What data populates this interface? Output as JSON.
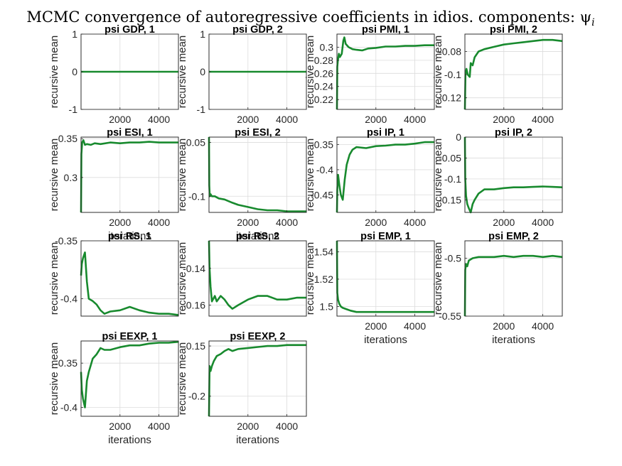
{
  "figure": {
    "title": "MCMC convergence of autoregressive coefficients in idios. components: ψ_i",
    "title_display": "MCMC convergence of autoregressive coefficients in idios. components: ψ",
    "title_subscript": "i"
  },
  "style": {
    "line_color": "#188a2e",
    "grid": true
  },
  "chart_data": [
    {
      "type": "line",
      "title": "psi GDP, 1",
      "xlabel": "",
      "ylabel": "recursive mean",
      "xlim": [
        1,
        5000
      ],
      "ylim": [
        -1,
        1
      ],
      "xticks": [
        2000,
        4000
      ],
      "yticks": [
        -1,
        0,
        1
      ],
      "ytick_labels": [
        "-1",
        "0",
        "1"
      ],
      "x": [
        1,
        5000
      ],
      "y": [
        0,
        0
      ]
    },
    {
      "type": "line",
      "title": "psi GDP, 2",
      "xlabel": "",
      "ylabel": "recursive mean",
      "xlim": [
        1,
        5000
      ],
      "ylim": [
        -1,
        1
      ],
      "xticks": [
        2000,
        4000
      ],
      "yticks": [
        -1,
        0,
        1
      ],
      "ytick_labels": [
        "-1",
        "0",
        "1"
      ],
      "x": [
        1,
        5000
      ],
      "y": [
        0,
        0
      ]
    },
    {
      "type": "line",
      "title": "psi PMI, 1",
      "xlabel": "",
      "ylabel": "recursive mean",
      "xlim": [
        1,
        5000
      ],
      "ylim": [
        0.205,
        0.32
      ],
      "xticks": [
        2000,
        4000
      ],
      "yticks": [
        0.22,
        0.24,
        0.26,
        0.28,
        0.3
      ],
      "ytick_labels": [
        "0.22",
        "0.24",
        "0.26",
        "0.28",
        "0.3"
      ],
      "x": [
        1,
        20,
        50,
        100,
        150,
        250,
        330,
        380,
        450,
        600,
        800,
        1000,
        1300,
        1600,
        2000,
        2500,
        3000,
        3500,
        4000,
        4500,
        5000
      ],
      "y": [
        0.205,
        0.27,
        0.28,
        0.29,
        0.285,
        0.29,
        0.31,
        0.315,
        0.305,
        0.3,
        0.297,
        0.296,
        0.295,
        0.298,
        0.299,
        0.301,
        0.301,
        0.302,
        0.302,
        0.303,
        0.303
      ]
    },
    {
      "type": "line",
      "title": "psi PMI, 2",
      "xlabel": "",
      "ylabel": "recursive mean",
      "xlim": [
        1,
        5000
      ],
      "ylim": [
        -0.13,
        -0.065
      ],
      "xticks": [
        2000,
        4000
      ],
      "yticks": [
        -0.12,
        -0.1,
        -0.08
      ],
      "ytick_labels": [
        "-0.12",
        "-0.1",
        "-0.08"
      ],
      "x": [
        1,
        30,
        80,
        150,
        250,
        300,
        400,
        500,
        700,
        1000,
        1500,
        2000,
        2500,
        3000,
        3500,
        4000,
        4500,
        5000
      ],
      "y": [
        -0.13,
        -0.1,
        -0.095,
        -0.1,
        -0.102,
        -0.09,
        -0.092,
        -0.085,
        -0.08,
        -0.078,
        -0.076,
        -0.074,
        -0.073,
        -0.072,
        -0.071,
        -0.07,
        -0.07,
        -0.071
      ]
    },
    {
      "type": "line",
      "title": "psi ESI, 1",
      "xlabel": "iterations",
      "ylabel": "recursive mean",
      "xlim": [
        1,
        5000
      ],
      "ylim": [
        0.255,
        0.352
      ],
      "xticks": [
        2000,
        4000
      ],
      "yticks": [
        0.3,
        0.35
      ],
      "ytick_labels": [
        "0.3",
        "0.35"
      ],
      "x": [
        1,
        20,
        60,
        120,
        200,
        300,
        500,
        700,
        1000,
        1500,
        2000,
        2500,
        3000,
        3500,
        4000,
        4500,
        5000
      ],
      "y": [
        0.255,
        0.33,
        0.345,
        0.348,
        0.342,
        0.343,
        0.342,
        0.344,
        0.343,
        0.345,
        0.344,
        0.345,
        0.345,
        0.346,
        0.345,
        0.345,
        0.345
      ]
    },
    {
      "type": "line",
      "title": "psi ESI, 2",
      "xlabel": "iterations",
      "ylabel": "recursive mean",
      "xlim": [
        1,
        5000
      ],
      "ylim": [
        -0.115,
        -0.045
      ],
      "xticks": [
        2000,
        4000
      ],
      "yticks": [
        -0.1,
        -0.05
      ],
      "ytick_labels": [
        "-0.1",
        "-0.05"
      ],
      "x": [
        1,
        15,
        40,
        80,
        150,
        300,
        500,
        800,
        1200,
        1500,
        2000,
        2500,
        3000,
        3500,
        4000,
        4500,
        5000
      ],
      "y": [
        -0.045,
        -0.09,
        -0.1,
        -0.098,
        -0.1,
        -0.1,
        -0.102,
        -0.103,
        -0.106,
        -0.108,
        -0.11,
        -0.112,
        -0.113,
        -0.113,
        -0.114,
        -0.114,
        -0.114
      ]
    },
    {
      "type": "line",
      "title": "psi IP, 1",
      "xlabel": "",
      "ylabel": "recursive mean",
      "xlim": [
        1,
        5000
      ],
      "ylim": [
        -0.485,
        -0.335
      ],
      "xticks": [
        2000,
        4000
      ],
      "yticks": [
        -0.45,
        -0.4,
        -0.35
      ],
      "ytick_labels": [
        "-0.45",
        "-0.4",
        "-0.35"
      ],
      "x": [
        1,
        20,
        60,
        120,
        200,
        300,
        400,
        500,
        650,
        800,
        1000,
        1500,
        2000,
        2500,
        3000,
        3500,
        4000,
        4500,
        5000
      ],
      "y": [
        -0.485,
        -0.44,
        -0.41,
        -0.43,
        -0.45,
        -0.46,
        -0.42,
        -0.39,
        -0.37,
        -0.36,
        -0.355,
        -0.357,
        -0.353,
        -0.352,
        -0.35,
        -0.35,
        -0.348,
        -0.345,
        -0.345
      ]
    },
    {
      "type": "line",
      "title": "psi IP, 2",
      "xlabel": "",
      "ylabel": "recursive mean",
      "xlim": [
        1,
        5000
      ],
      "ylim": [
        -0.18,
        0
      ],
      "xticks": [
        2000,
        4000
      ],
      "yticks": [
        -0.15,
        -0.1,
        -0.05,
        0
      ],
      "ytick_labels": [
        "-0.15",
        "-0.1",
        "-0.05",
        "0"
      ],
      "x": [
        1,
        20,
        60,
        120,
        200,
        300,
        400,
        500,
        700,
        1000,
        1500,
        2000,
        2500,
        3000,
        3500,
        4000,
        4500,
        5000
      ],
      "y": [
        0,
        -0.1,
        -0.14,
        -0.16,
        -0.17,
        -0.18,
        -0.16,
        -0.15,
        -0.135,
        -0.125,
        -0.125,
        -0.122,
        -0.12,
        -0.12,
        -0.119,
        -0.118,
        -0.119,
        -0.12
      ]
    },
    {
      "type": "line",
      "title": "psi RS, 1",
      "xlabel": "",
      "ylabel": "recursive mean",
      "xlim": [
        1,
        5000
      ],
      "ylim": [
        -0.415,
        -0.35
      ],
      "xticks": [],
      "yticks": [
        -0.4,
        -0.35
      ],
      "ytick_labels": [
        "-0.4",
        "-0.35"
      ],
      "x": [
        1,
        40,
        100,
        200,
        300,
        400,
        600,
        800,
        1000,
        1200,
        1500,
        2000,
        2500,
        3000,
        3500,
        4000,
        4500,
        5000
      ],
      "y": [
        -0.38,
        -0.37,
        -0.365,
        -0.36,
        -0.385,
        -0.4,
        -0.402,
        -0.405,
        -0.41,
        -0.413,
        -0.411,
        -0.41,
        -0.407,
        -0.41,
        -0.412,
        -0.413,
        -0.413,
        -0.414
      ]
    },
    {
      "type": "line",
      "title": "psi RS, 2",
      "xlabel": "",
      "ylabel": "recursive mean",
      "xlim": [
        1,
        5000
      ],
      "ylim": [
        -0.166,
        -0.125
      ],
      "xticks": [],
      "yticks": [
        -0.16,
        -0.14
      ],
      "ytick_labels": [
        "-0.16",
        "-0.14"
      ],
      "x": [
        1,
        30,
        80,
        150,
        300,
        400,
        600,
        800,
        1000,
        1200,
        1500,
        2000,
        2500,
        3000,
        3500,
        4000,
        4500,
        5000
      ],
      "y": [
        -0.125,
        -0.14,
        -0.15,
        -0.158,
        -0.155,
        -0.158,
        -0.155,
        -0.157,
        -0.16,
        -0.162,
        -0.16,
        -0.157,
        -0.155,
        -0.155,
        -0.157,
        -0.157,
        -0.156,
        -0.156
      ]
    },
    {
      "type": "line",
      "title": "psi EMP, 1",
      "xlabel": "iterations",
      "ylabel": "recursive mean",
      "xlim": [
        1,
        5000
      ],
      "ylim": [
        1.493,
        1.548
      ],
      "xticks": [
        2000,
        4000
      ],
      "yticks": [
        1.5,
        1.52,
        1.54
      ],
      "ytick_labels": [
        "1.5",
        "1.52",
        "1.54"
      ],
      "x": [
        1,
        20,
        60,
        120,
        200,
        300,
        500,
        700,
        1000,
        1500,
        2000,
        2500,
        3000,
        3500,
        4000,
        4500,
        5000
      ],
      "y": [
        1.548,
        1.51,
        1.505,
        1.502,
        1.5,
        1.499,
        1.498,
        1.497,
        1.496,
        1.496,
        1.496,
        1.496,
        1.496,
        1.496,
        1.496,
        1.496,
        1.496
      ]
    },
    {
      "type": "line",
      "title": "psi EMP, 2",
      "xlabel": "iterations",
      "ylabel": "recursive mean",
      "xlim": [
        1,
        5000
      ],
      "ylim": [
        -0.55,
        -0.485
      ],
      "xticks": [
        2000,
        4000
      ],
      "yticks": [
        -0.55,
        -0.5
      ],
      "ytick_labels": [
        "-0.55",
        "-0.5"
      ],
      "x": [
        1,
        20,
        60,
        120,
        200,
        400,
        700,
        1000,
        1500,
        2000,
        2500,
        3000,
        3500,
        4000,
        4500,
        5000
      ],
      "y": [
        -0.55,
        -0.51,
        -0.505,
        -0.507,
        -0.502,
        -0.5,
        -0.499,
        -0.499,
        -0.499,
        -0.498,
        -0.499,
        -0.498,
        -0.498,
        -0.499,
        -0.498,
        -0.499
      ]
    },
    {
      "type": "line",
      "title": "psi EEXP, 1",
      "xlabel": "iterations",
      "ylabel": "recursive mean",
      "xlim": [
        1,
        5000
      ],
      "ylim": [
        -0.41,
        -0.325
      ],
      "xticks": [
        2000,
        4000
      ],
      "yticks": [
        -0.4,
        -0.35
      ],
      "ytick_labels": [
        "-0.4",
        "-0.35"
      ],
      "x": [
        1,
        40,
        100,
        200,
        300,
        400,
        600,
        800,
        1000,
        1200,
        1500,
        2000,
        2500,
        3000,
        3500,
        4000,
        4500,
        5000
      ],
      "y": [
        -0.36,
        -0.38,
        -0.39,
        -0.4,
        -0.37,
        -0.36,
        -0.345,
        -0.34,
        -0.333,
        -0.335,
        -0.335,
        -0.332,
        -0.33,
        -0.33,
        -0.328,
        -0.327,
        -0.327,
        -0.326
      ]
    },
    {
      "type": "line",
      "title": "psi EEXP, 2",
      "xlabel": "iterations",
      "ylabel": "recursive mean",
      "xlim": [
        1,
        5000
      ],
      "ylim": [
        -0.22,
        -0.145
      ],
      "xticks": [
        2000,
        4000
      ],
      "yticks": [
        -0.2,
        -0.15
      ],
      "ytick_labels": [
        "-0.2",
        "-0.15"
      ],
      "x": [
        1,
        30,
        80,
        150,
        250,
        400,
        600,
        800,
        1000,
        1200,
        1500,
        2000,
        2500,
        3000,
        3500,
        4000,
        4500,
        5000
      ],
      "y": [
        -0.22,
        -0.17,
        -0.175,
        -0.17,
        -0.165,
        -0.16,
        -0.158,
        -0.155,
        -0.153,
        -0.155,
        -0.153,
        -0.152,
        -0.151,
        -0.15,
        -0.15,
        -0.149,
        -0.149,
        -0.149
      ]
    }
  ]
}
